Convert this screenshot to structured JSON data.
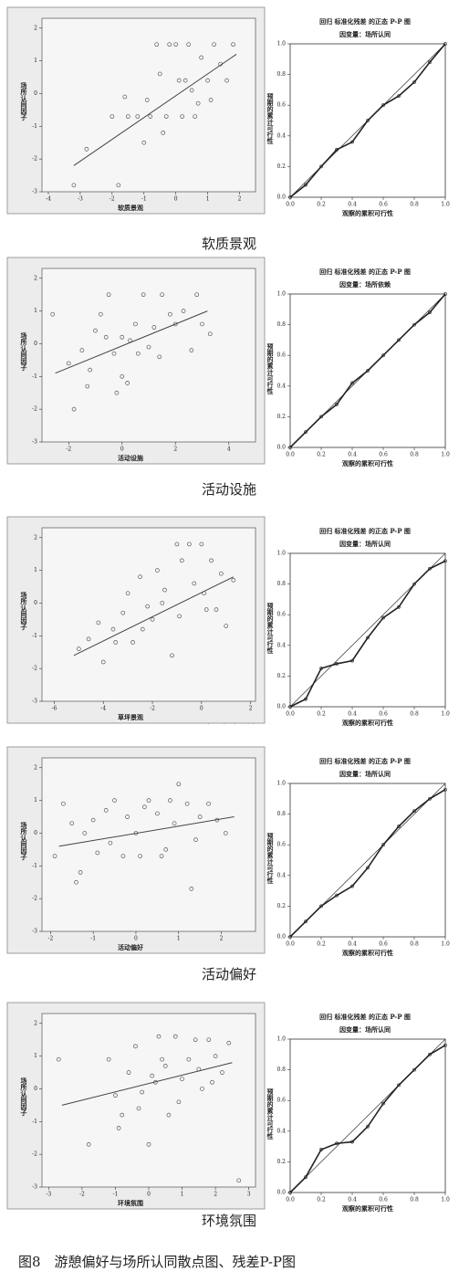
{
  "chart_data": [
    {
      "type": "scatter",
      "x_label": "软质景观",
      "y_label": "场所认同因子",
      "xlim": [
        -4.2,
        2.5
      ],
      "xticks": [
        -4,
        -3,
        -2,
        -1,
        0,
        1,
        2
      ],
      "ylim": [
        -3,
        2.3
      ],
      "yticks": [
        -3,
        -2,
        -1,
        0,
        1,
        2
      ],
      "x": [
        -3.2,
        -2.8,
        -2.0,
        -1.8,
        -1.5,
        -1.2,
        -1.0,
        -0.8,
        -0.6,
        -0.5,
        -0.3,
        -0.2,
        0,
        0.1,
        0.2,
        0.3,
        0.4,
        0.5,
        0.6,
        0.8,
        1.0,
        1.1,
        1.2,
        1.4,
        1.6,
        1.8,
        -0.9,
        -0.4,
        0.7,
        -1.6
      ],
      "y": [
        -2.8,
        -1.7,
        -0.7,
        -2.8,
        -0.7,
        -0.7,
        -1.5,
        -0.7,
        1.5,
        0.6,
        -0.7,
        1.5,
        1.5,
        0.4,
        -0.7,
        0.4,
        1.5,
        0.1,
        -0.7,
        1.1,
        0.4,
        -0.2,
        1.5,
        0.9,
        0.4,
        1.5,
        -0.2,
        -1.2,
        -0.3,
        -0.1
      ],
      "fit": {
        "x": [
          -3.2,
          1.9
        ],
        "y": [
          -2.2,
          1.2
        ]
      }
    },
    {
      "type": "pp",
      "title": "回归 标准化残差 的正态 P-P 图",
      "subtitle": "因变量：场所认同",
      "x_label": "观察的累积可行性",
      "y_label": "预期的累计可行性",
      "xlim": [
        0,
        1
      ],
      "xticks": [
        {
          "value": 0,
          "label": "0.0"
        },
        0.2,
        0.4,
        0.6,
        0.8,
        {
          "value": 1,
          "label": "1.0"
        }
      ],
      "ylim": [
        0,
        1
      ],
      "yticks": [
        {
          "value": 0,
          "label": "0.0"
        },
        0.2,
        0.4,
        0.6,
        0.8,
        {
          "value": 1,
          "label": "1.0"
        }
      ],
      "x": [
        0,
        0.1,
        0.2,
        0.3,
        0.4,
        0.5,
        0.6,
        0.7,
        0.8,
        0.9,
        1
      ],
      "y": [
        0,
        0.08,
        0.2,
        0.31,
        0.36,
        0.5,
        0.6,
        0.66,
        0.75,
        0.88,
        1.0
      ]
    },
    {
      "type": "scatter",
      "x_label": "活动设施",
      "y_label": "场所认同因子",
      "xlim": [
        -3,
        5
      ],
      "xticks": [
        -2,
        0,
        2,
        4
      ],
      "ylim": [
        -3,
        2.3
      ],
      "yticks": [
        -3,
        -2,
        -1,
        0,
        1,
        2
      ],
      "x": [
        -2.6,
        -2.0,
        -1.8,
        -1.5,
        -1.2,
        -1.0,
        -0.8,
        -0.5,
        -0.3,
        0,
        0.2,
        0.5,
        0.8,
        1.0,
        1.2,
        1.5,
        1.8,
        2.0,
        2.3,
        2.6,
        3.0,
        3.3,
        -0.2,
        0.3,
        0.6,
        1.4,
        -1.3,
        0.0,
        2.8,
        -0.6
      ],
      "y": [
        0.9,
        -0.6,
        -2.0,
        -0.2,
        -0.8,
        0.4,
        0.9,
        1.5,
        -0.3,
        0.2,
        -1.2,
        0.6,
        1.5,
        -0.1,
        0.5,
        1.5,
        0.9,
        0.6,
        1.0,
        -0.2,
        0.6,
        0.3,
        -1.5,
        0.1,
        -0.3,
        -0.4,
        -1.3,
        -1.0,
        1.5,
        0.2
      ],
      "fit": {
        "x": [
          -2.5,
          3.2
        ],
        "y": [
          -0.9,
          1.0
        ]
      }
    },
    {
      "type": "pp",
      "title": "回归 标准化残差 的正态 P-P 图",
      "subtitle": "因变量：场所依赖",
      "x_label": "观察的累积可行性",
      "y_label": "预期的累计可行性",
      "xlim": [
        0,
        1
      ],
      "xticks": [
        {
          "value": 0,
          "label": "0.0"
        },
        0.2,
        0.4,
        0.6,
        0.8,
        {
          "value": 1,
          "label": "1.0"
        }
      ],
      "ylim": [
        0,
        1
      ],
      "yticks": [
        {
          "value": 0,
          "label": "0.0"
        },
        0.2,
        0.4,
        0.6,
        0.8,
        {
          "value": 1,
          "label": "1.0"
        }
      ],
      "x": [
        0,
        0.1,
        0.2,
        0.3,
        0.4,
        0.5,
        0.6,
        0.7,
        0.8,
        0.9,
        1
      ],
      "y": [
        0,
        0.1,
        0.2,
        0.28,
        0.42,
        0.5,
        0.6,
        0.7,
        0.8,
        0.88,
        1.0
      ]
    },
    {
      "type": "scatter",
      "x_label": "草坪景观",
      "y_label": "场所认同因子",
      "xlim": [
        -6.5,
        2.2
      ],
      "xticks": [
        -6,
        -4,
        -2,
        0,
        2
      ],
      "ylim": [
        -3,
        2.3
      ],
      "yticks": [
        -3,
        -2,
        -1,
        0,
        1,
        2
      ],
      "x": [
        -5.0,
        -4.6,
        -4.2,
        -4.0,
        -3.6,
        -3.2,
        -3.0,
        -2.8,
        -2.5,
        -2.2,
        -2.0,
        -1.8,
        -1.5,
        -1.2,
        -1.0,
        -0.8,
        -0.5,
        -0.3,
        0,
        0.2,
        0.4,
        0.6,
        0.8,
        1.0,
        1.3,
        -1.6,
        -0.9,
        0.1,
        -3.5,
        -2.4
      ],
      "y": [
        -1.4,
        -1.1,
        -0.6,
        -1.8,
        -0.8,
        -0.3,
        0.3,
        -1.2,
        0.8,
        -0.1,
        -0.5,
        1.0,
        0.4,
        -1.6,
        1.8,
        1.3,
        1.8,
        0.6,
        1.8,
        -0.2,
        1.3,
        -0.2,
        0.9,
        -0.7,
        0.7,
        0.0,
        -0.4,
        0.3,
        -1.2,
        -0.8
      ],
      "fit": {
        "x": [
          -5.2,
          1.3
        ],
        "y": [
          -1.6,
          0.8
        ]
      }
    },
    {
      "type": "pp",
      "title": "回归 标准化残差 的正态 P-P 图",
      "subtitle": "因变量：场所认同",
      "x_label": "观察的累积可行性",
      "y_label": "预期的累计可行性",
      "xlim": [
        0,
        1
      ],
      "xticks": [
        {
          "value": 0,
          "label": "0.0"
        },
        0.2,
        0.4,
        0.6,
        0.8,
        {
          "value": 1,
          "label": "1.0"
        }
      ],
      "ylim": [
        0,
        1
      ],
      "yticks": [
        {
          "value": 0,
          "label": "0.0"
        },
        0.2,
        0.4,
        0.6,
        0.8,
        {
          "value": 1,
          "label": "1.0"
        }
      ],
      "x": [
        0,
        0.1,
        0.2,
        0.3,
        0.4,
        0.5,
        0.6,
        0.7,
        0.8,
        0.9,
        1
      ],
      "y": [
        0,
        0.05,
        0.25,
        0.28,
        0.3,
        0.45,
        0.58,
        0.65,
        0.8,
        0.9,
        0.95
      ]
    },
    {
      "type": "scatter",
      "x_label": "活动偏好",
      "y_label": "场所认同因子",
      "xlim": [
        -2.2,
        2.8
      ],
      "xticks": [
        -2,
        -1,
        0,
        1,
        2
      ],
      "ylim": [
        -3,
        2.3
      ],
      "yticks": [
        -3,
        -2,
        -1,
        0,
        1,
        2
      ],
      "x": [
        -1.9,
        -1.7,
        -1.5,
        -1.3,
        -1.2,
        -1.0,
        -0.9,
        -0.7,
        -0.5,
        -0.3,
        -0.2,
        0,
        0.1,
        0.3,
        0.5,
        0.6,
        0.8,
        0.9,
        1.0,
        1.2,
        1.3,
        1.5,
        1.7,
        1.9,
        2.1,
        -0.6,
        0.2,
        0.7,
        1.4,
        -1.4
      ],
      "y": [
        -0.7,
        0.9,
        0.3,
        -1.2,
        0.0,
        0.4,
        -0.6,
        0.7,
        1.0,
        -0.7,
        0.5,
        0.0,
        -0.7,
        1.0,
        0.6,
        -0.7,
        1.0,
        0.3,
        1.5,
        0.9,
        -1.7,
        0.5,
        0.9,
        0.4,
        0.0,
        -0.3,
        0.8,
        -0.5,
        -0.2,
        -1.5
      ],
      "fit": {
        "x": [
          -1.8,
          2.3
        ],
        "y": [
          -0.4,
          0.5
        ]
      }
    },
    {
      "type": "pp",
      "title": "回归 标准化残差 的正态 P-P 图",
      "subtitle": "因变量：场所认同",
      "x_label": "观察的累积可行性",
      "y_label": "预期的累计可行性",
      "xlim": [
        0,
        1
      ],
      "xticks": [
        {
          "value": 0,
          "label": "0.0"
        },
        0.2,
        0.4,
        0.6,
        0.8,
        {
          "value": 1,
          "label": "1.0"
        }
      ],
      "ylim": [
        0,
        1
      ],
      "yticks": [
        {
          "value": 0,
          "label": "0.0"
        },
        0.2,
        0.4,
        0.6,
        0.8,
        {
          "value": 1,
          "label": "1.0"
        }
      ],
      "x": [
        0,
        0.1,
        0.2,
        0.3,
        0.4,
        0.5,
        0.6,
        0.7,
        0.8,
        0.9,
        1
      ],
      "y": [
        0,
        0.1,
        0.2,
        0.27,
        0.33,
        0.45,
        0.6,
        0.72,
        0.82,
        0.9,
        0.96
      ]
    },
    {
      "type": "scatter",
      "x_label": "环境氛围",
      "y_label": "场所认同因子",
      "xlim": [
        -3.2,
        3.2
      ],
      "xticks": [
        -3,
        -2,
        -1,
        0,
        1,
        2,
        3
      ],
      "ylim": [
        -3,
        2.3
      ],
      "yticks": [
        -3,
        -2,
        -1,
        0,
        1,
        2
      ],
      "x": [
        -2.7,
        -1.8,
        -1.2,
        -1.0,
        -0.8,
        -0.6,
        -0.4,
        -0.2,
        0,
        0.1,
        0.3,
        0.5,
        0.6,
        0.8,
        1.0,
        1.2,
        1.4,
        1.6,
        1.8,
        2.0,
        2.2,
        2.4,
        2.7,
        -0.9,
        0.2,
        0.9,
        1.5,
        -0.3,
        0.4,
        1.9
      ],
      "y": [
        0.9,
        -1.7,
        0.9,
        -0.2,
        -0.8,
        0.5,
        1.3,
        -0.1,
        -1.7,
        0.4,
        1.6,
        0.7,
        -0.8,
        1.6,
        0.3,
        0.9,
        1.5,
        0.0,
        1.5,
        1.0,
        0.5,
        1.4,
        -2.8,
        -1.2,
        0.2,
        -0.4,
        0.6,
        -0.6,
        0.9,
        0.2
      ],
      "fit": {
        "x": [
          -2.6,
          2.5
        ],
        "y": [
          -0.5,
          0.8
        ]
      }
    },
    {
      "type": "pp",
      "title": "回归 标准化残差 的正态 P-P 图",
      "subtitle": "因变量：场所认同",
      "x_label": "观察的累积可行性",
      "y_label": "预期的累计可行性",
      "xlim": [
        0,
        1
      ],
      "xticks": [
        {
          "value": 0,
          "label": "0.0"
        },
        0.2,
        0.4,
        0.6,
        0.8,
        {
          "value": 1,
          "label": "1.0"
        }
      ],
      "ylim": [
        0,
        1
      ],
      "yticks": [
        {
          "value": 0,
          "label": "0.0"
        },
        0.2,
        0.4,
        0.6,
        0.8,
        {
          "value": 1,
          "label": "1.0"
        }
      ],
      "x": [
        0,
        0.1,
        0.2,
        0.3,
        0.4,
        0.5,
        0.6,
        0.7,
        0.8,
        0.9,
        1
      ],
      "y": [
        0,
        0.1,
        0.28,
        0.32,
        0.33,
        0.43,
        0.58,
        0.7,
        0.8,
        0.9,
        0.96
      ]
    }
  ],
  "row_captions": [
    "软质景观",
    "活动设施",
    "草坪景观",
    "活动偏好",
    "环境氛围"
  ],
  "figure_caption": "图8　游憩偏好与场所认同散点图、残差P-P图"
}
